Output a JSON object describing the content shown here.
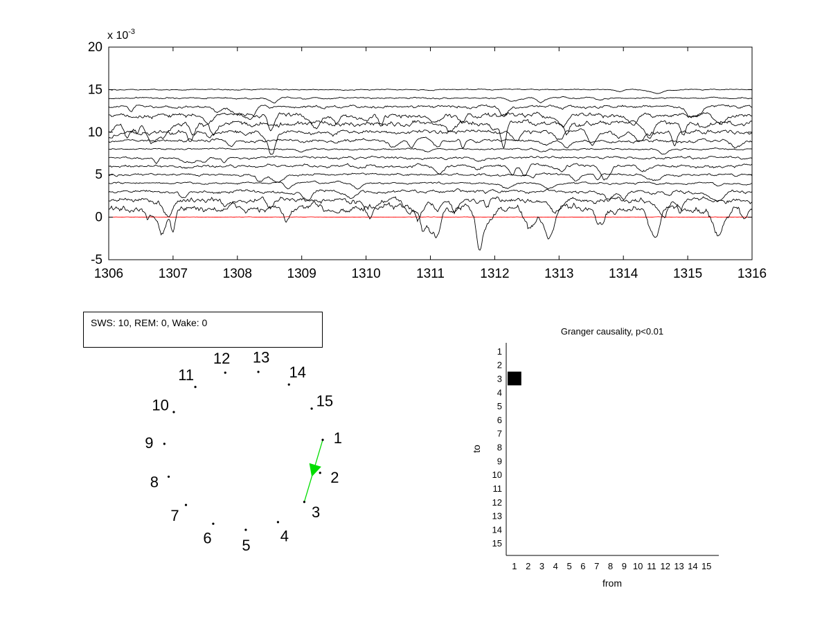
{
  "chart_data": [
    {
      "type": "line",
      "title": "",
      "xlabel": "",
      "ylabel": "",
      "y_exponent": "x 10",
      "y_exponent_power": "-3",
      "xlim": [
        1306,
        1316
      ],
      "ylim": [
        -5,
        20
      ],
      "x_ticks": [
        "1306",
        "1307",
        "1308",
        "1309",
        "1310",
        "1311",
        "1312",
        "1313",
        "1314",
        "1315",
        "1316"
      ],
      "y_ticks": [
        "-5",
        "0",
        "5",
        "10",
        "15",
        "20"
      ],
      "grid": false,
      "legend": "none",
      "series_offsets": [
        0,
        1,
        2,
        3,
        4,
        5,
        6,
        7,
        8,
        9,
        10,
        11,
        12,
        13,
        14,
        15
      ],
      "series_colors": [
        "#ff0000",
        "#000000",
        "#000000",
        "#000000",
        "#000000",
        "#000000",
        "#000000",
        "#000000",
        "#000000",
        "#000000",
        "#000000",
        "#000000",
        "#000000",
        "#000000",
        "#000000",
        "#000000"
      ]
    },
    {
      "type": "scatter",
      "title": "",
      "node_labels": [
        "1",
        "2",
        "3",
        "4",
        "5",
        "6",
        "7",
        "8",
        "9",
        "10",
        "11",
        "12",
        "13",
        "14",
        "15"
      ],
      "edges": [
        {
          "from": "1",
          "to": "3",
          "color": "#00dd00"
        }
      ]
    },
    {
      "type": "heatmap",
      "title": "Granger causality, p<0.01",
      "xlabel": "from",
      "ylabel": "to",
      "x_ticks": [
        "1",
        "2",
        "3",
        "4",
        "5",
        "6",
        "7",
        "8",
        "9",
        "10",
        "11",
        "12",
        "13",
        "14",
        "15"
      ],
      "y_ticks": [
        "1",
        "2",
        "3",
        "4",
        "5",
        "6",
        "7",
        "8",
        "9",
        "10",
        "11",
        "12",
        "13",
        "14",
        "15"
      ],
      "cells": [
        {
          "from": 1,
          "to": 3,
          "value": 1
        }
      ]
    }
  ],
  "status": {
    "text": "SWS: 10,  REM: 0,  Wake: 0"
  }
}
